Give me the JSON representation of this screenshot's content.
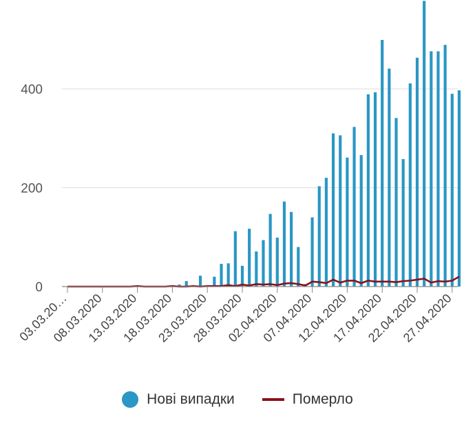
{
  "chart_data": {
    "type": "bar+line",
    "x": [
      "03.03.2020",
      "04.03.2020",
      "05.03.2020",
      "06.03.2020",
      "07.03.2020",
      "08.03.2020",
      "09.03.2020",
      "10.03.2020",
      "11.03.2020",
      "12.03.2020",
      "13.03.2020",
      "14.03.2020",
      "15.03.2020",
      "16.03.2020",
      "17.03.2020",
      "18.03.2020",
      "19.03.2020",
      "20.03.2020",
      "21.03.2020",
      "22.03.2020",
      "23.03.2020",
      "24.03.2020",
      "25.03.2020",
      "26.03.2020",
      "27.03.2020",
      "28.03.2020",
      "29.03.2020",
      "30.03.2020",
      "31.03.2020",
      "01.04.2020",
      "02.04.2020",
      "03.04.2020",
      "04.04.2020",
      "05.04.2020",
      "06.04.2020",
      "07.04.2020",
      "08.04.2020",
      "09.04.2020",
      "10.04.2020",
      "11.04.2020",
      "12.04.2020",
      "13.04.2020",
      "14.04.2020",
      "15.04.2020",
      "16.04.2020",
      "17.04.2020",
      "18.04.2020",
      "19.04.2020",
      "20.04.2020",
      "21.04.2020",
      "22.04.2020",
      "23.04.2020",
      "24.04.2020",
      "25.04.2020",
      "26.04.2020",
      "27.04.2020",
      "28.04.2020"
    ],
    "tick_labels": [
      "03.03.20…",
      "08.03.2020",
      "13.03.2020",
      "18.03.2020",
      "23.03.2020",
      "28.03.2020",
      "02.04.2020",
      "07.04.2020",
      "12.04.2020",
      "17.04.2020",
      "22.04.2020",
      "27.04.2020"
    ],
    "tick_indices": [
      0,
      5,
      10,
      15,
      20,
      25,
      30,
      35,
      40,
      45,
      50,
      55
    ],
    "series": [
      {
        "name": "Нові випадки",
        "type": "bar",
        "color": "#2a97c4",
        "values": [
          0,
          0,
          0,
          0,
          0,
          0,
          0,
          0,
          0,
          0,
          0,
          0,
          0,
          0,
          0,
          2,
          4,
          11,
          0,
          22,
          0,
          20,
          46,
          47,
          112,
          42,
          117,
          71,
          94,
          147,
          99,
          172,
          151,
          80,
          5,
          140,
          203,
          220,
          310,
          306,
          261,
          323,
          266,
          389,
          393,
          499,
          441,
          341,
          258,
          411,
          463,
          578,
          476,
          476,
          489,
          390,
          397
        ]
      },
      {
        "name": "Померло",
        "type": "line",
        "color": "#8b0f1a",
        "values": [
          0,
          0,
          0,
          0,
          0,
          0,
          0,
          0,
          0,
          0,
          1,
          0,
          0,
          0,
          0,
          1,
          0,
          0,
          1,
          0,
          1,
          1,
          1,
          3,
          1,
          4,
          2,
          5,
          4,
          5,
          3,
          6,
          7,
          5,
          2,
          10,
          9,
          7,
          14,
          8,
          12,
          12,
          7,
          12,
          10,
          10,
          10,
          9,
          11,
          12,
          14,
          16,
          8,
          11,
          10,
          12,
          20
        ]
      }
    ],
    "y_ticks": [
      0,
      200,
      400
    ],
    "ylim": [
      0,
      580
    ],
    "grid": true,
    "legend_position": "bottom"
  },
  "legend": {
    "items": [
      {
        "label": "Нові випадки",
        "color": "#2a97c4"
      },
      {
        "label": "Померло",
        "color": "#8b0f1a"
      }
    ]
  }
}
